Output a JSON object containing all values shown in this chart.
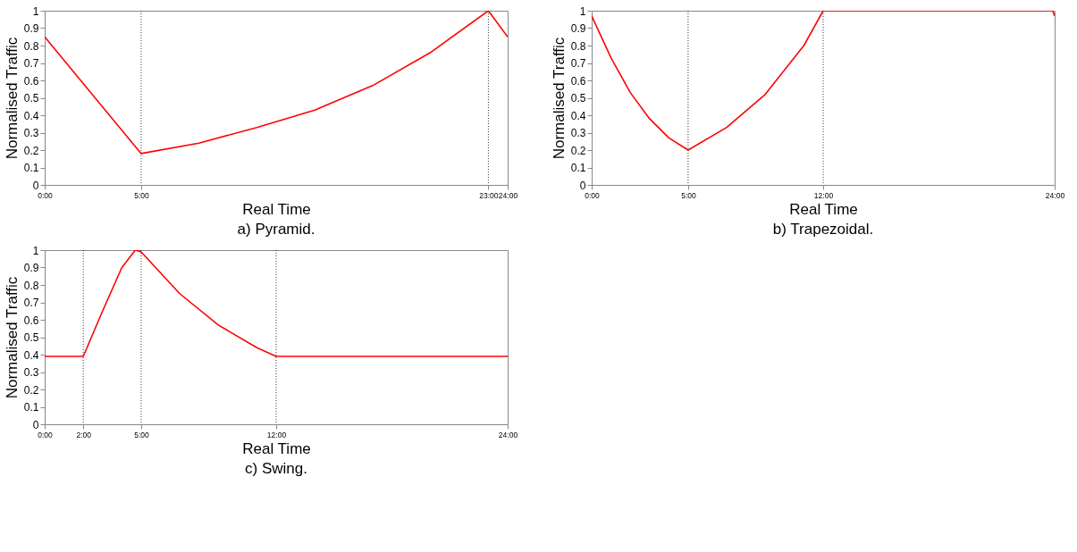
{
  "chart_data": [
    {
      "type": "line",
      "title": "a) Pyramid.",
      "xlabel": "Real Time",
      "ylabel": "Normalised Traffic",
      "xlim": [
        0,
        24
      ],
      "xticks": [
        {
          "value": 0,
          "label": "0:00"
        },
        {
          "value": 5,
          "label": "5:00"
        },
        {
          "value": 23,
          "label": "23:00"
        },
        {
          "value": 24,
          "label": "24:00"
        }
      ],
      "ylim": [
        0,
        1
      ],
      "yticks": [
        0,
        0.1,
        0.2,
        0.3,
        0.4,
        0.5,
        0.6,
        0.7,
        0.8,
        0.9,
        1
      ],
      "grid": false,
      "legend": false,
      "ref_lines": [
        {
          "axis": "x",
          "value": 5,
          "color": "#000000",
          "line_style": "dotted"
        },
        {
          "axis": "x",
          "value": 23,
          "color": "#000000",
          "line_style": "dotted"
        }
      ],
      "series": [
        {
          "color": "#ff0000",
          "x": [
            0,
            5,
            8,
            11,
            14,
            17,
            20,
            23,
            24
          ],
          "values": [
            0.85,
            0.18,
            0.24,
            0.33,
            0.43,
            0.57,
            0.76,
            1.0,
            0.85
          ]
        }
      ]
    },
    {
      "type": "line",
      "title": "b) Trapezoidal.",
      "xlabel": "Real Time",
      "ylabel": "Normalised Traffic",
      "xlim": [
        0,
        24
      ],
      "xticks": [
        {
          "value": 0,
          "label": "0:00"
        },
        {
          "value": 5,
          "label": "5:00"
        },
        {
          "value": 12,
          "label": "12:00"
        },
        {
          "value": 24,
          "label": "24:00"
        }
      ],
      "ylim": [
        0,
        1
      ],
      "yticks": [
        0,
        0.1,
        0.2,
        0.3,
        0.4,
        0.5,
        0.6,
        0.7,
        0.8,
        0.9,
        1
      ],
      "grid": false,
      "legend": false,
      "ref_lines": [
        {
          "axis": "x",
          "value": 5,
          "color": "#000000",
          "line_style": "dotted"
        },
        {
          "axis": "x",
          "value": 12,
          "color": "#000000",
          "line_style": "dotted"
        }
      ],
      "series": [
        {
          "color": "#ff0000",
          "x": [
            0,
            1,
            2,
            3,
            4,
            5,
            7,
            9,
            11,
            12,
            23.9,
            24
          ],
          "values": [
            0.97,
            0.73,
            0.53,
            0.38,
            0.27,
            0.2,
            0.33,
            0.52,
            0.8,
            1.0,
            1.0,
            0.97
          ]
        }
      ]
    },
    {
      "type": "line",
      "title": "c) Swing.",
      "xlabel": "Real Time",
      "ylabel": "Normalised Traffic",
      "xlim": [
        0,
        24
      ],
      "xticks": [
        {
          "value": 0,
          "label": "0:00"
        },
        {
          "value": 2,
          "label": "2:00"
        },
        {
          "value": 5,
          "label": "5:00"
        },
        {
          "value": 12,
          "label": "12:00"
        },
        {
          "value": 24,
          "label": "24:00"
        }
      ],
      "ylim": [
        0,
        1
      ],
      "yticks": [
        0,
        0.1,
        0.2,
        0.3,
        0.4,
        0.5,
        0.6,
        0.7,
        0.8,
        0.9,
        1
      ],
      "grid": false,
      "legend": false,
      "ref_lines": [
        {
          "axis": "x",
          "value": 2,
          "color": "#000000",
          "line_style": "dotted"
        },
        {
          "axis": "x",
          "value": 5,
          "color": "#000000",
          "line_style": "dotted"
        },
        {
          "axis": "x",
          "value": 12,
          "color": "#000000",
          "line_style": "dotted"
        }
      ],
      "series": [
        {
          "color": "#ff0000",
          "x": [
            0,
            2,
            3,
            4,
            4.7,
            5,
            7,
            9,
            11,
            12,
            24
          ],
          "values": [
            0.39,
            0.39,
            0.65,
            0.9,
            1.0,
            0.99,
            0.75,
            0.57,
            0.44,
            0.39,
            0.39
          ]
        }
      ]
    }
  ]
}
